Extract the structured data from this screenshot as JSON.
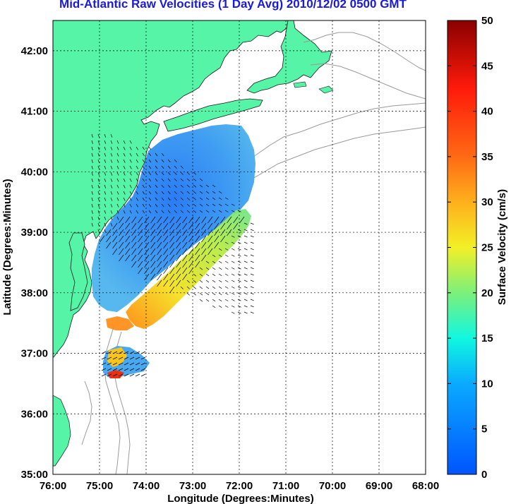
{
  "title": "Mid-Atlantic Raw Velocities (1 Day Avg) 2010/12/02 0500 GMT",
  "x_axis": {
    "label": "Longitude (Degrees:Minutes)",
    "ticks": [
      "76:00",
      "75:00",
      "74:00",
      "73:00",
      "72:00",
      "71:00",
      "70:00",
      "69:00",
      "68:00"
    ]
  },
  "y_axis": {
    "label": "Latitude (Degrees:Minutes)",
    "ticks": [
      "35:00",
      "36:00",
      "37:00",
      "38:00",
      "39:00",
      "40:00",
      "41:00",
      "42:00"
    ]
  },
  "colorbar": {
    "label": "Surface Velocity (cm/s)",
    "ticks": [
      "0",
      "5",
      "10",
      "15",
      "20",
      "25",
      "30",
      "35",
      "40",
      "45",
      "50"
    ],
    "range": [
      0,
      50
    ]
  },
  "colors": {
    "land": "#55f4a6",
    "title": "#1a1adb",
    "low_velocity": "#2a8cff",
    "high_velocity": "#c80000",
    "bathymetry": "#9a9a9a"
  },
  "map_extent": {
    "lon": [
      -76,
      -68
    ],
    "lat": [
      35,
      42.5
    ]
  },
  "grid": true
}
